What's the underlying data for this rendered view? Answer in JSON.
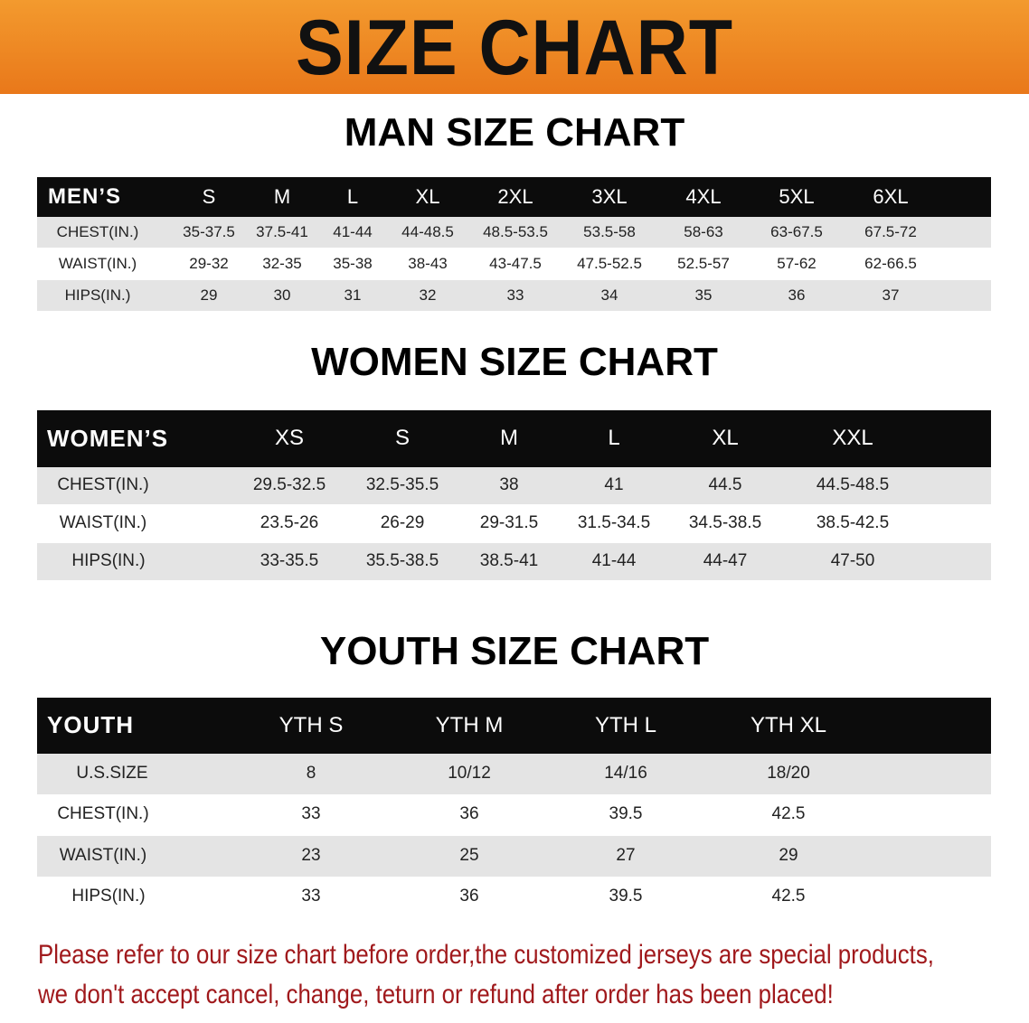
{
  "banner": {
    "title": "SIZE CHART",
    "color": "#ee8420"
  },
  "sections": [
    {
      "title": "MAN SIZE CHART",
      "header": [
        "MEN’S",
        "S",
        "M",
        "L",
        "XL",
        "2XL",
        "3XL",
        "4XL",
        "5XL",
        "6XL"
      ],
      "rows": [
        [
          "CHEST(IN.)",
          "35-37.5",
          "37.5-41",
          "41-44",
          "44-48.5",
          "48.5-53.5",
          "53.5-58",
          "58-63",
          "63-67.5",
          "67.5-72"
        ],
        [
          "WAIST(IN.)",
          "29-32",
          "32-35",
          "35-38",
          "38-43",
          "43-47.5",
          "47.5-52.5",
          "52.5-57",
          "57-62",
          "62-66.5"
        ],
        [
          "HIPS(IN.)",
          "29",
          "30",
          "31",
          "32",
          "33",
          "34",
          "35",
          "36",
          "37"
        ]
      ]
    },
    {
      "title": "WOMEN SIZE CHART",
      "header": [
        "WOMEN’S",
        "XS",
        "S",
        "M",
        "L",
        "XL",
        "XXL"
      ],
      "rows": [
        [
          "CHEST(IN.)",
          "29.5-32.5",
          "32.5-35.5",
          "38",
          "41",
          "44.5",
          "44.5-48.5"
        ],
        [
          "WAIST(IN.)",
          "23.5-26",
          "26-29",
          "29-31.5",
          "31.5-34.5",
          "34.5-38.5",
          "38.5-42.5"
        ],
        [
          "HIPS(IN.)",
          "33-35.5",
          "35.5-38.5",
          "38.5-41",
          "41-44",
          "44-47",
          "47-50"
        ]
      ]
    },
    {
      "title": "YOUTH SIZE CHART",
      "header": [
        "YOUTH",
        "YTH S",
        "YTH M",
        "YTH L",
        "YTH XL"
      ],
      "rows": [
        [
          "U.S.SIZE",
          "8",
          "10/12",
          "14/16",
          "18/20"
        ],
        [
          "CHEST(IN.)",
          "33",
          "36",
          "39.5",
          "42.5"
        ],
        [
          "WAIST(IN.)",
          "23",
          "25",
          "27",
          "29"
        ],
        [
          "HIPS(IN.)",
          "33",
          "36",
          "39.5",
          "42.5"
        ]
      ]
    }
  ],
  "note": {
    "line1": "Please refer to our size chart before order,the customized jerseys are special products,",
    "line2": "we don't accept cancel, change, teturn or refund after order has been placed!",
    "color": "#a0191c"
  }
}
